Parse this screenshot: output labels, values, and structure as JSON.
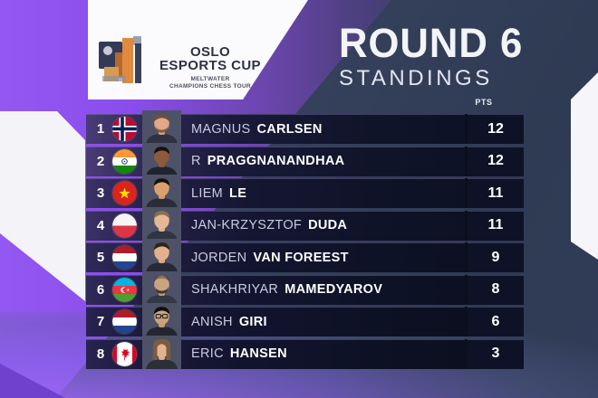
{
  "banner": {
    "logo_icon": "tournament-logo",
    "title_line1": "OSLO",
    "title_line2": "ESPORTS CUP",
    "subtitle_line1": "MELTWATER",
    "subtitle_line2": "CHAMPIONS CHESS TOUR"
  },
  "header": {
    "round_title": "ROUND 6",
    "subtitle": "STANDINGS",
    "points_label": "PTS"
  },
  "colors": {
    "accent_purple": "#8d52f0",
    "background_slate": "#344059",
    "row_dark": "#121631",
    "points_cell_dark": "#0d1226",
    "banner_white": "#fbfafc",
    "text_white": "#f5f6fa",
    "logo_orange": "#df8a3e",
    "logo_navy": "#343a55",
    "logo_gray": "#9aa0b2"
  },
  "standings": {
    "rows": [
      {
        "rank": "1",
        "country": "norway",
        "first_name": "MAGNUS",
        "last_name": "CARLSEN",
        "points": "12",
        "avatar": {
          "skin": "#e2a887",
          "hair": "#6b5138",
          "shirt": "#2e3242",
          "beard": true,
          "glasses": false,
          "bald": false,
          "long_hair": false
        }
      },
      {
        "rank": "2",
        "country": "india",
        "first_name": "R",
        "last_name": "PRAGGNANANDHAA",
        "points": "12",
        "avatar": {
          "skin": "#8d5a3c",
          "hair": "#17120e",
          "shirt": "#20242f",
          "beard": false,
          "glasses": false,
          "bald": false,
          "long_hair": false
        }
      },
      {
        "rank": "3",
        "country": "vietnam",
        "first_name": "LIEM",
        "last_name": "LE",
        "points": "11",
        "avatar": {
          "skin": "#d9a06e",
          "hair": "#141210",
          "shirt": "#2a2d38",
          "beard": false,
          "glasses": false,
          "bald": false,
          "long_hair": false
        }
      },
      {
        "rank": "4",
        "country": "poland",
        "first_name": "JAN-KRZYSZTOF",
        "last_name": "DUDA",
        "points": "11",
        "avatar": {
          "skin": "#e6b896",
          "hair": "#8a6f4e",
          "shirt": "#303544",
          "beard": false,
          "glasses": false,
          "bald": false,
          "long_hair": false
        }
      },
      {
        "rank": "5",
        "country": "netherlands",
        "first_name": "JORDEN",
        "last_name": "VAN FOREEST",
        "points": "9",
        "avatar": {
          "skin": "#e3af8d",
          "hair": "#2e241c",
          "shirt": "#262a36",
          "beard": false,
          "glasses": false,
          "bald": false,
          "long_hair": false
        }
      },
      {
        "rank": "6",
        "country": "azerbaijan",
        "first_name": "SHAKHRIYAR",
        "last_name": "MAMEDYAROV",
        "points": "8",
        "avatar": {
          "skin": "#caa37f",
          "hair": "#2a241f",
          "shirt": "#343845",
          "beard": true,
          "glasses": false,
          "bald": true,
          "long_hair": false
        }
      },
      {
        "rank": "7",
        "country": "netherlands",
        "first_name": "ANISH",
        "last_name": "GIRI",
        "points": "6",
        "avatar": {
          "skin": "#caa27b",
          "hair": "#100e0c",
          "shirt": "#23262f",
          "beard": false,
          "glasses": true,
          "bald": false,
          "long_hair": false
        }
      },
      {
        "rank": "8",
        "country": "canada",
        "first_name": "ERIC",
        "last_name": "HANSEN",
        "points": "3",
        "avatar": {
          "skin": "#e4b291",
          "hair": "#7a5c3e",
          "shirt": "#2b2f3a",
          "beard": false,
          "glasses": false,
          "bald": false,
          "long_hair": true
        }
      }
    ]
  }
}
